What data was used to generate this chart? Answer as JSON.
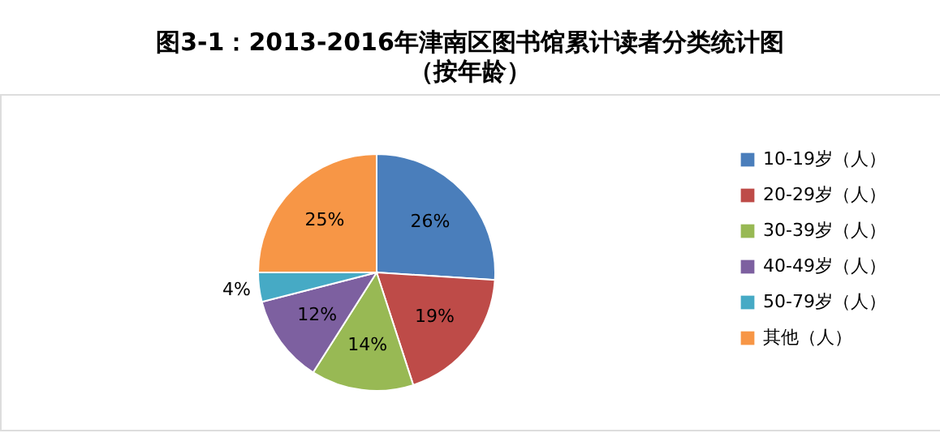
{
  "chart_data": {
    "type": "pie",
    "title": "图3-1：2013-2016年津南区图书馆累计读者分类统计图",
    "subtitle": "（按年龄）",
    "categories": [
      "10-19岁（人）",
      "20-29岁（人）",
      "30-39岁（人）",
      "40-49岁（人）",
      "50-79岁（人）",
      "其他（人）"
    ],
    "values": [
      26,
      19,
      14,
      12,
      4,
      25
    ],
    "value_labels": [
      "26%",
      "19%",
      "14%",
      "12%",
      "4%",
      "25%"
    ],
    "colors": [
      "#4a7ebb",
      "#be4b48",
      "#98b954",
      "#7d60a0",
      "#46aac5",
      "#f79646"
    ],
    "legend": "right"
  }
}
